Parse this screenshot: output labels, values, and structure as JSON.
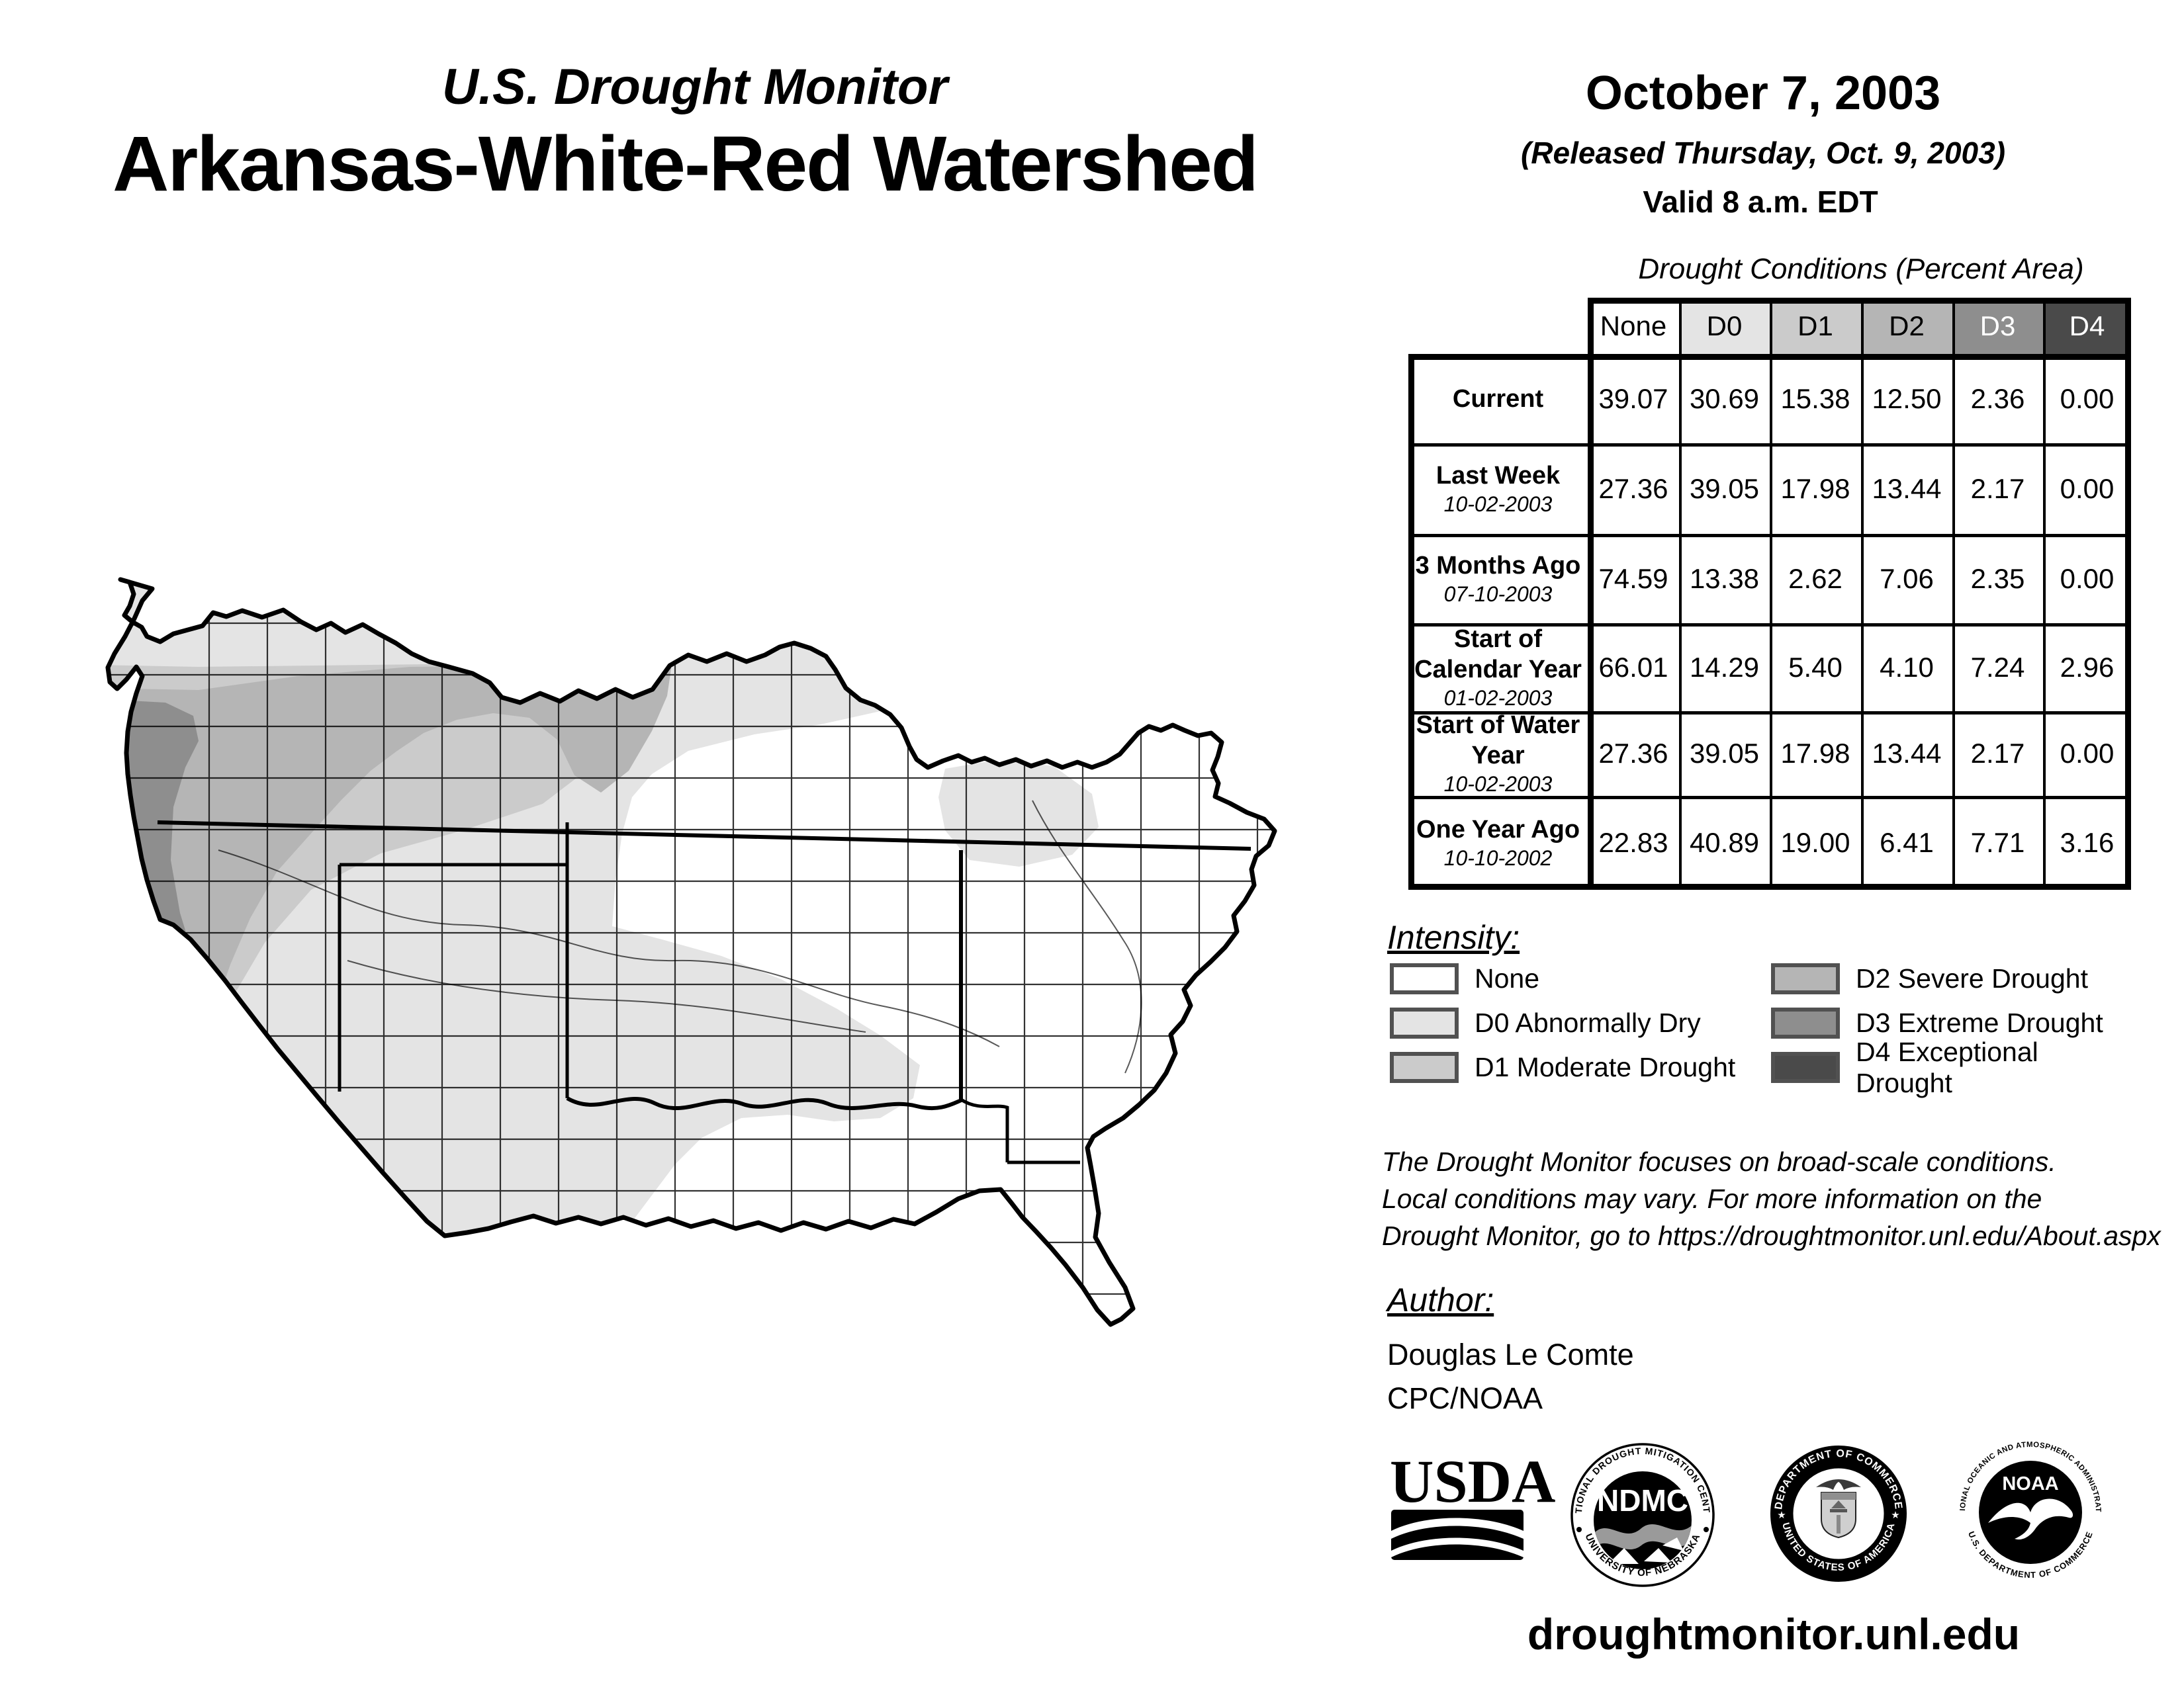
{
  "header": {
    "title_small": "U.S. Drought Monitor",
    "title_large": "Arkansas-White-Red Watershed",
    "date": "October 7, 2003",
    "released": "(Released Thursday, Oct. 9, 2003)",
    "valid": "Valid 8 a.m. EDT"
  },
  "table": {
    "caption": "Drought Conditions (Percent Area)",
    "columns": [
      "None",
      "D0",
      "D1",
      "D2",
      "D3",
      "D4"
    ],
    "column_colors": [
      "#ffffff",
      "#e4e4e4",
      "#cbcbcb",
      "#b5b5b5",
      "#8e8e8e",
      "#4a4a4a"
    ],
    "column_text_colors": [
      "#000000",
      "#000000",
      "#000000",
      "#000000",
      "#ffffff",
      "#ffffff"
    ],
    "rows": [
      {
        "label": "Current",
        "date": "",
        "values": [
          "39.07",
          "30.69",
          "15.38",
          "12.50",
          "2.36",
          "0.00"
        ]
      },
      {
        "label": "Last Week",
        "date": "10-02-2003",
        "values": [
          "27.36",
          "39.05",
          "17.98",
          "13.44",
          "2.17",
          "0.00"
        ]
      },
      {
        "label": "3 Months Ago",
        "date": "07-10-2003",
        "values": [
          "74.59",
          "13.38",
          "2.62",
          "7.06",
          "2.35",
          "0.00"
        ]
      },
      {
        "label": "Start of Calendar Year",
        "date": "01-02-2003",
        "values": [
          "66.01",
          "14.29",
          "5.40",
          "4.10",
          "7.24",
          "2.96"
        ]
      },
      {
        "label": "Start of Water Year",
        "date": "10-02-2003",
        "values": [
          "27.36",
          "39.05",
          "17.98",
          "13.44",
          "2.17",
          "0.00"
        ]
      },
      {
        "label": "One Year Ago",
        "date": "10-10-2002",
        "values": [
          "22.83",
          "40.89",
          "19.00",
          "6.41",
          "7.71",
          "3.16"
        ]
      }
    ]
  },
  "legend": {
    "heading": "Intensity:",
    "items": [
      {
        "label": "None",
        "color": "#ffffff"
      },
      {
        "label": "D0 Abnormally Dry",
        "color": "#e4e4e4"
      },
      {
        "label": "D1 Moderate Drought",
        "color": "#cbcbcb"
      },
      {
        "label": "D2 Severe Drought",
        "color": "#b5b5b5"
      },
      {
        "label": "D3 Extreme Drought",
        "color": "#8e8e8e"
      },
      {
        "label": "D4 Exceptional Drought",
        "color": "#4a4a4a"
      }
    ]
  },
  "disclaimer_lines": [
    "The Drought Monitor focuses on broad-scale conditions.",
    "Local conditions may vary. For more information on the",
    "Drought Monitor, go to https://droughtmonitor.unl.edu/About.aspx"
  ],
  "author": {
    "heading": "Author:",
    "name": "Douglas Le Comte",
    "org": "CPC/NOAA"
  },
  "logos": {
    "usda": "USDA",
    "ndmc": {
      "center": "NDMC",
      "top": "NATIONAL DROUGHT MITIGATION CENTER",
      "bottom": "UNIVERSITY OF NEBRASKA"
    },
    "doc": {
      "top": "DEPARTMENT OF COMMERCE",
      "bottom": "UNITED STATES OF AMERICA"
    },
    "noaa": {
      "center": "NOAA",
      "top": "NATIONAL OCEANIC AND ATMOSPHERIC ADMINISTRATION",
      "bottom": "U.S. DEPARTMENT OF COMMERCE"
    }
  },
  "footer": {
    "url": "droughtmonitor.unl.edu"
  }
}
